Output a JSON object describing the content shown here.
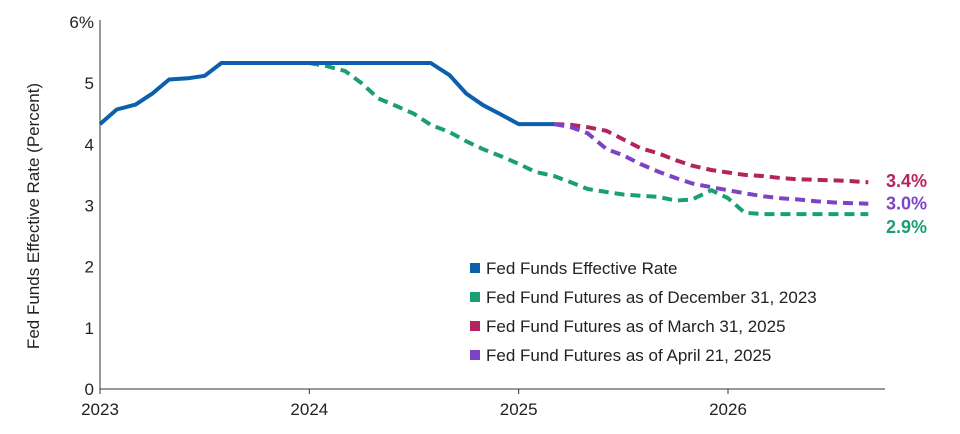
{
  "chart_data": {
    "type": "line",
    "title": "",
    "xlabel": "",
    "ylabel": "Fed Funds Effective Rate (Percent)",
    "xlim": [
      2023.0,
      2026.75
    ],
    "ylim": [
      0,
      6
    ],
    "x_ticks": [
      2023,
      2024,
      2025,
      2026
    ],
    "x_tick_labels": [
      "2023",
      "2024",
      "2025",
      "2026"
    ],
    "y_ticks": [
      0,
      1,
      2,
      3,
      4,
      5,
      6
    ],
    "y_tick_labels": [
      "0",
      "1",
      "2",
      "3",
      "4",
      "5",
      "6%"
    ],
    "grid": false,
    "legend_position": "bottom-right",
    "series": [
      {
        "name": "Fed Funds Effective Rate",
        "color": "#0b5fad",
        "style": "solid",
        "x": [
          2023.0,
          2023.08,
          2023.17,
          2023.25,
          2023.33,
          2023.42,
          2023.5,
          2023.58,
          2023.67,
          2023.75,
          2023.83,
          2023.92,
          2024.0,
          2024.08,
          2024.17,
          2024.25,
          2024.33,
          2024.42,
          2024.5,
          2024.58,
          2024.67,
          2024.75,
          2024.83,
          2024.92,
          2025.0,
          2025.08,
          2025.17
        ],
        "values": [
          4.33,
          4.57,
          4.65,
          4.83,
          5.06,
          5.08,
          5.12,
          5.33,
          5.33,
          5.33,
          5.33,
          5.33,
          5.33,
          5.33,
          5.33,
          5.33,
          5.33,
          5.33,
          5.33,
          5.33,
          5.13,
          4.83,
          4.64,
          4.48,
          4.33,
          4.33,
          4.33
        ]
      },
      {
        "name": "Fed Fund Futures as of December 31, 2023",
        "color": "#1a9e76",
        "style": "dashed",
        "x": [
          2024.0,
          2024.08,
          2024.17,
          2024.25,
          2024.33,
          2024.42,
          2024.5,
          2024.58,
          2024.67,
          2024.75,
          2024.83,
          2024.92,
          2025.0,
          2025.08,
          2025.17,
          2025.25,
          2025.33,
          2025.42,
          2025.5,
          2025.58,
          2025.67,
          2025.75,
          2025.83,
          2025.92,
          2026.0,
          2026.08,
          2026.17,
          2026.25,
          2026.33,
          2026.42,
          2026.5,
          2026.58,
          2026.67
        ],
        "values": [
          5.33,
          5.28,
          5.2,
          5.0,
          4.75,
          4.62,
          4.5,
          4.32,
          4.2,
          4.05,
          3.92,
          3.8,
          3.68,
          3.55,
          3.48,
          3.38,
          3.27,
          3.22,
          3.18,
          3.16,
          3.14,
          3.08,
          3.1,
          3.25,
          3.12,
          2.88,
          2.86,
          2.86,
          2.86,
          2.86,
          2.86,
          2.86,
          2.86
        ]
      },
      {
        "name": "Fed Fund Futures as of March 31, 2025",
        "color": "#b5235f",
        "style": "dashed",
        "x": [
          2025.17,
          2025.25,
          2025.33,
          2025.42,
          2025.5,
          2025.58,
          2025.67,
          2025.75,
          2025.83,
          2025.92,
          2026.0,
          2026.08,
          2026.17,
          2026.25,
          2026.33,
          2026.42,
          2026.5,
          2026.58,
          2026.67
        ],
        "values": [
          4.33,
          4.32,
          4.28,
          4.22,
          4.08,
          3.94,
          3.85,
          3.74,
          3.65,
          3.58,
          3.54,
          3.5,
          3.48,
          3.45,
          3.43,
          3.42,
          3.41,
          3.4,
          3.38
        ]
      },
      {
        "name": "Fed Fund Futures as of April 21, 2025",
        "color": "#7b44c4",
        "style": "dashed",
        "x": [
          2025.17,
          2025.25,
          2025.33,
          2025.42,
          2025.5,
          2025.58,
          2025.67,
          2025.75,
          2025.83,
          2025.92,
          2026.0,
          2026.08,
          2026.17,
          2026.25,
          2026.33,
          2026.42,
          2026.5,
          2026.58,
          2026.67
        ],
        "values": [
          4.33,
          4.28,
          4.18,
          3.92,
          3.82,
          3.68,
          3.55,
          3.45,
          3.36,
          3.3,
          3.25,
          3.2,
          3.15,
          3.12,
          3.1,
          3.07,
          3.05,
          3.04,
          3.03
        ]
      }
    ],
    "end_labels": [
      {
        "text": "3.4%",
        "color": "#b5235f",
        "y": 3.4
      },
      {
        "text": "3.0%",
        "color": "#7b44c4",
        "y": 3.03
      },
      {
        "text": "2.9%",
        "color": "#1a9e76",
        "y": 2.65
      }
    ]
  }
}
